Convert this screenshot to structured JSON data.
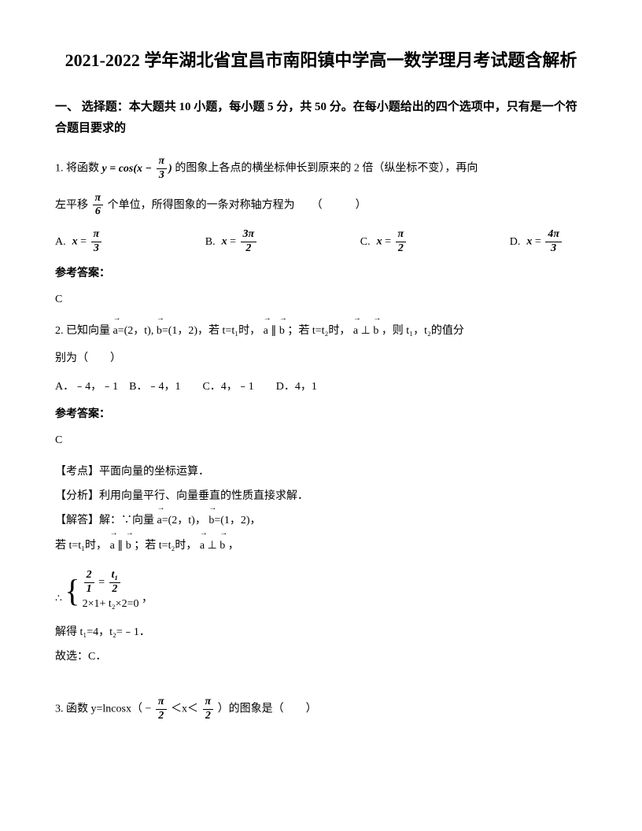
{
  "title": "2021-2022 学年湖北省宜昌市南阳镇中学高一数学理月考试题含解析",
  "section1": {
    "header": "一、 选择题：本大题共 10 小题，每小题 5 分，共 50 分。在每小题给出的四个选项中，只有是一个符合题目要求的"
  },
  "q1": {
    "prefix": "1. 将函数",
    "formula": "y = cos(x − π/3)",
    "text1": "的图象上各点的横坐标伸长到原来的 2 倍（纵坐标不变），再向",
    "text2": "左平移",
    "shift": "π/6",
    "text3": "个单位，所得图象的一条对称轴方程为　　（　　　）",
    "optA_label": "A.",
    "optA_val": "x = π/3",
    "optB_label": "B.",
    "optB_val": "x = 3π/2",
    "optC_label": "C.",
    "optC_val": "x = π/2",
    "optD_label": "D.",
    "optD_val": "x = 4π/3",
    "answer_label": "参考答案：",
    "answer": "C"
  },
  "q2": {
    "prefix": "2. 已知向量",
    "vec_a": "a",
    "a_val": "=(2，t),",
    "vec_b": "b",
    "b_val": "=(1，2)，若 t=t₁时，",
    "parallel": "∥",
    "text2": "；若 t=t₂时，",
    "perp": "⊥",
    "text3": "，则 t₁，t₂的值分",
    "text4": "别为（　　）",
    "options": "A．﹣4，﹣1　B．﹣4，1　　C．4，﹣1　　D．4，1",
    "answer_label": "参考答案：",
    "answer": "C",
    "point_label": "【考点】平面向量的坐标运算．",
    "analysis_label": "【分析】利用向量平行、向量垂直的性质直接求解．",
    "solve_label": "【解答】解：∵向量",
    "solve_a": "=(2，t)，",
    "solve_b": "=(1，2)，",
    "cond1": "若 t=t₁时，",
    "cond1_rel": "∥",
    "cond2": "；若 t=t₂时，",
    "cond2_rel": "⊥",
    "cond3": "，",
    "sys_line1_num": "2",
    "sys_line1_den1": "1",
    "sys_line1_eq": "=",
    "sys_line1_num2": "t₁",
    "sys_line1_den2": "2",
    "sys_line2": "2×1+ t₂×2=0",
    "therefore": "∴",
    "result": "解得 t₁=4，t₂=﹣1．",
    "conclusion": "故选：C．"
  },
  "q3": {
    "prefix": "3. 函数 y=lncosx（",
    "range_left_num": "π",
    "range_left_den": "2",
    "range_mid": "＜x＜",
    "range_right_num": "π",
    "range_right_den": "2",
    "suffix": "）的图象是（　　）",
    "neg": "−"
  }
}
